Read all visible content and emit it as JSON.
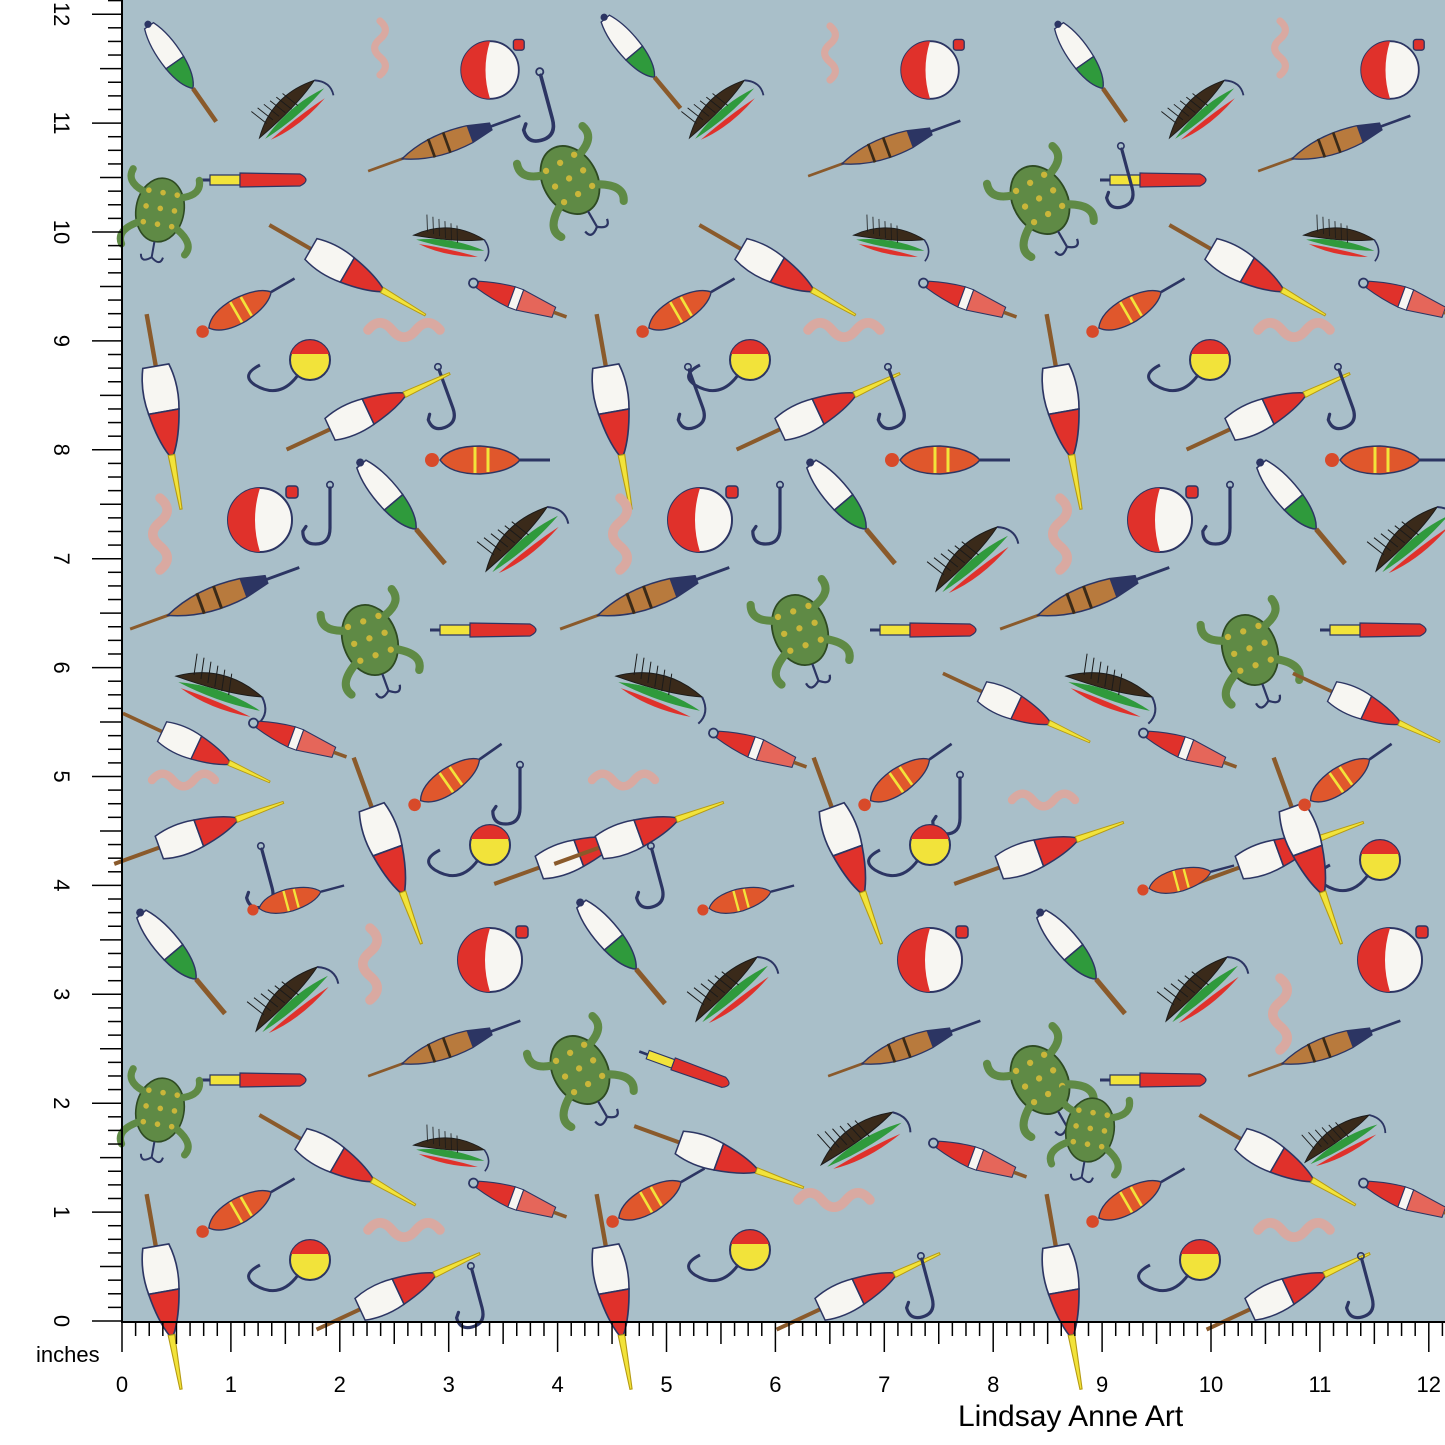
{
  "ruler": {
    "unit_label": "inches",
    "vertical_ticks": [
      "0",
      "1",
      "2",
      "3",
      "4",
      "5",
      "6",
      "7",
      "8",
      "9",
      "10",
      "11",
      "12"
    ],
    "horizontal_ticks": [
      "0",
      "1",
      "2",
      "3",
      "4",
      "5",
      "6",
      "7",
      "8",
      "9",
      "10",
      "11",
      "12"
    ]
  },
  "watermark": "Lindsay Anne Art",
  "fabric": {
    "background_color": "#a9bfc9",
    "motifs": [
      "bobber-float-icon",
      "round-bobber-icon",
      "fly-lure-icon",
      "frog-lure-icon",
      "fish-hook-icon",
      "worm-icon",
      "spinner-lure-icon"
    ]
  },
  "colors": {
    "red": "#e0312b",
    "yellow": "#f2e33a",
    "green": "#2f9a3c",
    "navy": "#2c3563",
    "brown": "#8a5a2b",
    "worm": "#d9a9a1",
    "frog": "#5f8a45",
    "white": "#f7f6f2"
  }
}
